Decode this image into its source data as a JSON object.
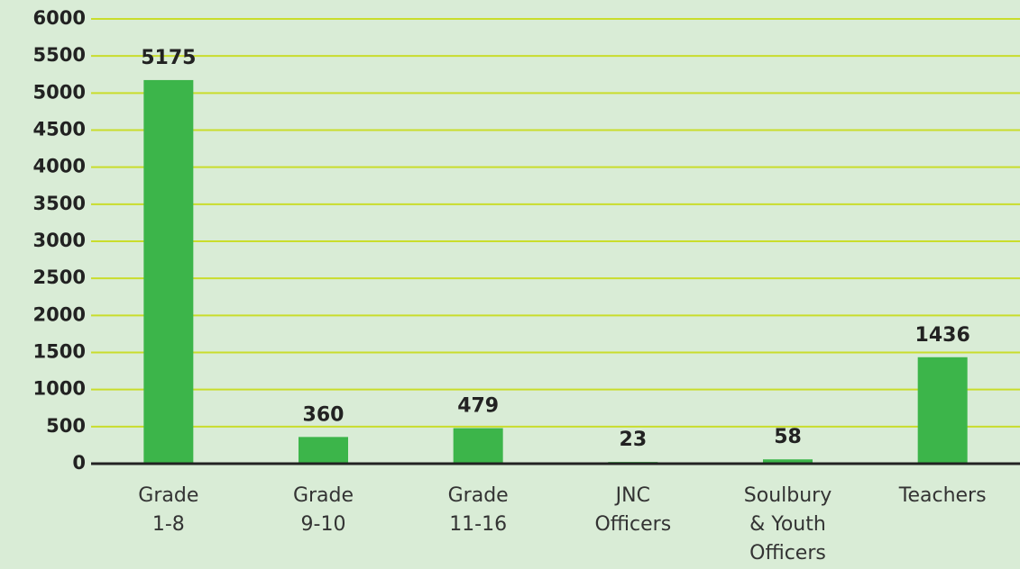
{
  "chart_data": {
    "type": "bar",
    "categories": [
      "Grade\n1-8",
      "Grade\n9-10",
      "Grade\n11-16",
      "JNC\nOfficers",
      "Soulbury\n& Youth\nOfficers",
      "Teachers"
    ],
    "values": [
      5175,
      360,
      479,
      23,
      58,
      1436
    ],
    "color": "#3cb54a",
    "ylim": [
      0,
      6000
    ],
    "yticks": [
      0,
      500,
      1000,
      1500,
      2000,
      2500,
      3000,
      3500,
      4000,
      4500,
      5000,
      5500,
      6000
    ],
    "grid": true
  }
}
